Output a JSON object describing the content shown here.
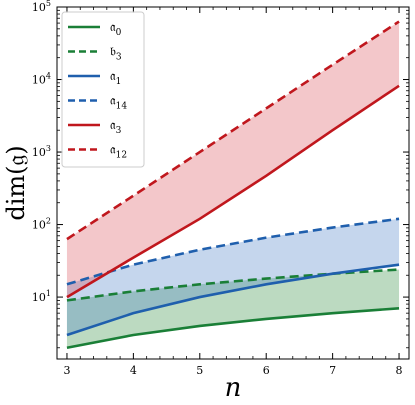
{
  "chart_data": {
    "type": "line",
    "xlabel": "n",
    "ylabel": "dim(𝔤)",
    "xlim": [
      2.85,
      8.15
    ],
    "ylim": [
      1.4,
      100000
    ],
    "yscale": "log",
    "grid": false,
    "legend": "top-left",
    "x": [
      3,
      4,
      5,
      6,
      7,
      8
    ],
    "x_ticks": [
      3,
      4,
      5,
      6,
      7,
      8
    ],
    "y_ticks": [
      {
        "value": 10,
        "base": "10",
        "exp": "1"
      },
      {
        "value": 100,
        "base": "10",
        "exp": "2"
      },
      {
        "value": 1000,
        "base": "10",
        "exp": "3"
      },
      {
        "value": 10000,
        "base": "10",
        "exp": "4"
      },
      {
        "value": 100000,
        "base": "10",
        "exp": "5"
      }
    ],
    "series": [
      {
        "name": "𝔞",
        "sub": "0",
        "color": "#1a7f37",
        "dash": false,
        "values": [
          2,
          3,
          4,
          5,
          6,
          7
        ]
      },
      {
        "name": "𝔟",
        "sub": "3",
        "color": "#1a7f37",
        "dash": true,
        "values": [
          9,
          12,
          15,
          18,
          21,
          24
        ]
      },
      {
        "name": "𝔞",
        "sub": "1",
        "color": "#1f5fad",
        "dash": false,
        "values": [
          3,
          6,
          10,
          15,
          21,
          28
        ]
      },
      {
        "name": "𝔞",
        "sub": "14",
        "color": "#1f5fad",
        "dash": true,
        "values": [
          15,
          28,
          45,
          66,
          91,
          120
        ]
      },
      {
        "name": "𝔞",
        "sub": "3",
        "color": "#c0171d",
        "dash": false,
        "values": [
          10,
          35,
          120,
          470,
          2000,
          8200
        ]
      },
      {
        "name": "𝔞",
        "sub": "12",
        "color": "#c0171d",
        "dash": true,
        "values": [
          63,
          250,
          1000,
          4000,
          16000,
          63000
        ]
      }
    ],
    "bands": [
      {
        "lower": 0,
        "upper": 1,
        "color": "#2e8b3e"
      },
      {
        "lower": 2,
        "upper": 3,
        "color": "#4a7fc7"
      },
      {
        "lower": 4,
        "upper": 5,
        "color": "#d9505a"
      }
    ]
  }
}
